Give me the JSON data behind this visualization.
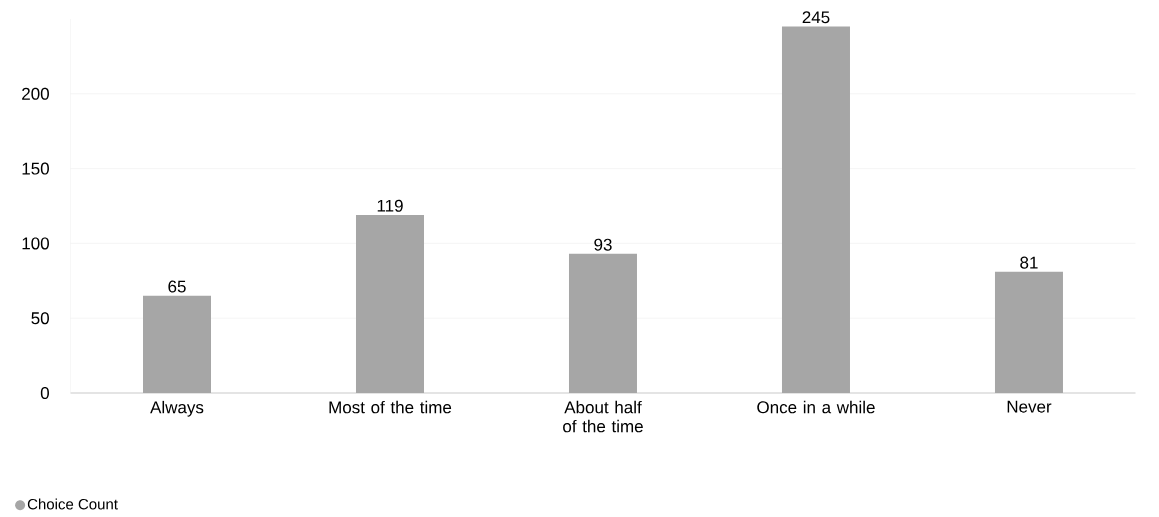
{
  "chart_data": {
    "type": "bar",
    "categories": [
      "Always",
      "Most of the time",
      "About half of the time",
      "Once in a while",
      "Never"
    ],
    "series": [
      {
        "name": "Choice Count",
        "color": "#a6a6a6",
        "values": [
          65,
          119,
          93,
          245,
          81
        ]
      }
    ],
    "ylim": [
      0,
      250
    ],
    "yticks": [
      0,
      50,
      100,
      150,
      200
    ],
    "grid": "y",
    "data_labels": true,
    "legend": "bottom left"
  }
}
